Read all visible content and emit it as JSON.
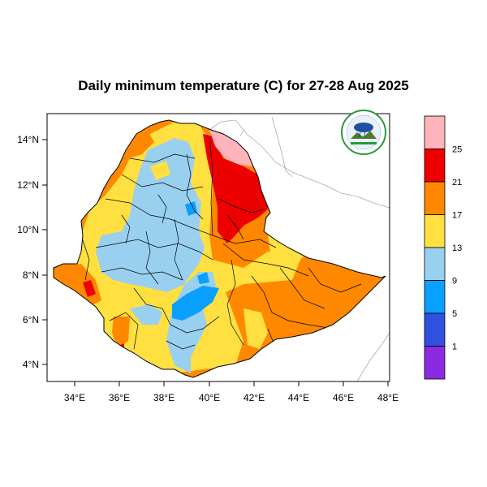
{
  "title": "Daily minimum temperature (C) for 27-28 Aug 2025",
  "map": {
    "lon_ticks": [
      "34°E",
      "36°E",
      "38°E",
      "40°E",
      "42°E",
      "44°E",
      "46°E",
      "48°E"
    ],
    "lat_ticks": [
      "14°N",
      "12°N",
      "10°N",
      "8°N",
      "6°N",
      "4°N"
    ],
    "lon_range": [
      32.9,
      48.2
    ],
    "lat_range": [
      3.2,
      15.0
    ]
  },
  "colorbar": {
    "labels": [
      "25",
      "21",
      "17",
      "13",
      "9",
      "5",
      "1"
    ],
    "colors": [
      "#ffb3ba",
      "#ee0000",
      "#ff8800",
      "#ffe040",
      "#99d0f0",
      "#0aa0ff",
      "#3050e0",
      "#8a2be2"
    ]
  },
  "logo": {
    "name": "ethiopian-meteorology-institute-logo",
    "colors": {
      "rim": "#2a9a3a",
      "cloud": "#1e4fa0",
      "ground": "#4a7a2a"
    }
  }
}
